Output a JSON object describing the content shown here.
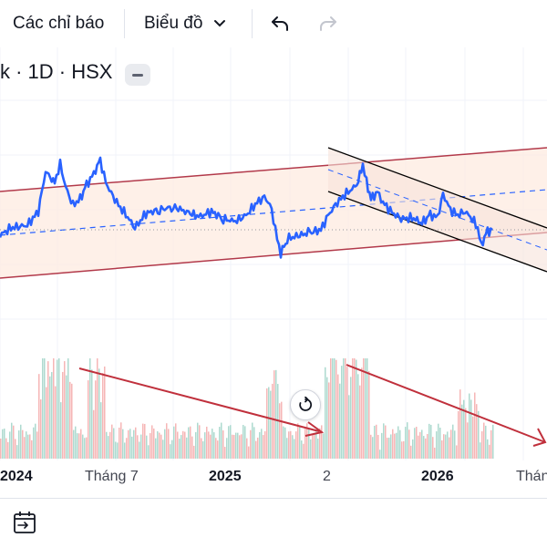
{
  "toolbar": {
    "indicators_label": "Các chỉ báo",
    "chart_type_label": "Biểu đồ",
    "icons": [
      "undo-icon",
      "redo-icon",
      "chevron-down-icon"
    ]
  },
  "legend": {
    "text": "k · 1D · HSX"
  },
  "x_axis": {
    "labels": [
      "2024",
      "Tháng 7",
      "2025",
      "2",
      "2026",
      "Tháng"
    ]
  },
  "bottom_bar": {
    "icons": [
      "calendar-range-icon"
    ]
  },
  "colors": {
    "price_line": "#2962ff",
    "channel_red": "#b2394a",
    "channel_fill": "#fdebe0",
    "down_channel": "#000000",
    "volume_up": "#9fd3c7",
    "volume_down": "#f4a9a9",
    "trend_arrow": "#c0303c"
  }
}
